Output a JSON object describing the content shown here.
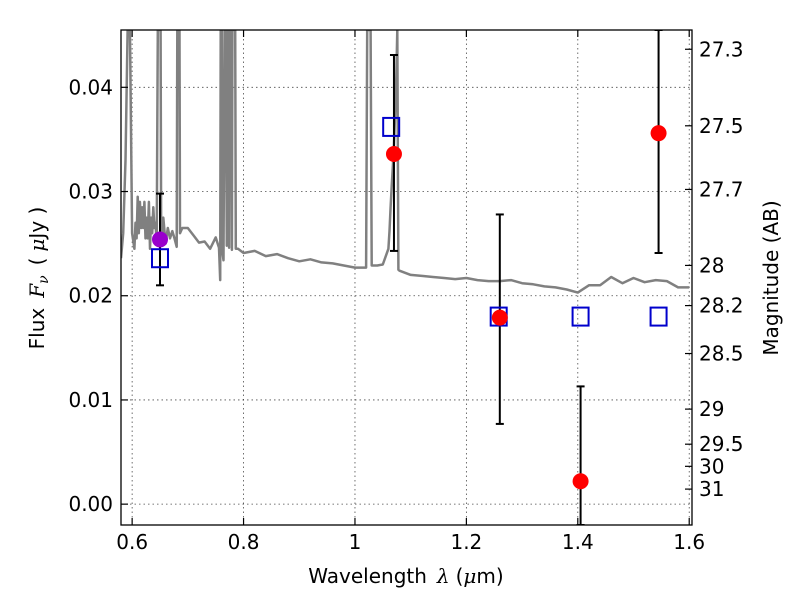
{
  "chart_data": {
    "type": "scatter",
    "xlabel_text": "Wavelength",
    "xlabel_symbol": "λ",
    "xlabel_unit_open": "(",
    "xlabel_unit_mu": "μ",
    "xlabel_unit_close": "m)",
    "ylabel_text": "Flux",
    "ylabel_symbol": "F",
    "ylabel_subscript": "ν",
    "ylabel_unit_open": "(",
    "ylabel_unit_mu": "μ",
    "ylabel_unit_close": "Jy )",
    "y2label": "Magnitude (AB)",
    "xlim": [
      0.58,
      1.605
    ],
    "ylim": [
      -0.002,
      0.0455
    ],
    "grid": true,
    "x_ticks": [
      {
        "value": 0.6,
        "label": "0.6"
      },
      {
        "value": 0.8,
        "label": "0.8"
      },
      {
        "value": 1.0,
        "label": "1"
      },
      {
        "value": 1.2,
        "label": "1.2"
      },
      {
        "value": 1.4,
        "label": "1.4"
      },
      {
        "value": 1.6,
        "label": "1.6"
      }
    ],
    "y_ticks": [
      {
        "value": 0.0,
        "label": "0.00"
      },
      {
        "value": 0.01,
        "label": "0.01"
      },
      {
        "value": 0.02,
        "label": "0.02"
      },
      {
        "value": 0.03,
        "label": "0.03"
      },
      {
        "value": 0.04,
        "label": "0.04"
      }
    ],
    "mag_ticks": [
      {
        "value": 27.3,
        "label": "27.3"
      },
      {
        "value": 27.5,
        "label": "27.5"
      },
      {
        "value": 27.7,
        "label": "27.7"
      },
      {
        "value": 28.0,
        "label": "28"
      },
      {
        "value": 28.2,
        "label": "28.2"
      },
      {
        "value": 28.5,
        "label": "28.5"
      },
      {
        "value": 29.0,
        "label": "29"
      },
      {
        "value": 29.5,
        "label": "29.5"
      },
      {
        "value": 30.0,
        "label": "30"
      },
      {
        "value": 31.0,
        "label": "31"
      }
    ],
    "observed": {
      "color": "#ff0000",
      "points": [
        {
          "x": 1.07,
          "y": 0.0336,
          "yerr_low": 0.0243,
          "yerr_high": 0.0431
        },
        {
          "x": 1.26,
          "y": 0.0179,
          "yerr_low": 0.0077,
          "yerr_high": 0.0278
        },
        {
          "x": 1.405,
          "y": 0.0022,
          "yerr_low": -0.002,
          "yerr_high": 0.0113
        },
        {
          "x": 1.545,
          "y": 0.0356,
          "yerr_low": 0.0241,
          "yerr_high": 0.0455
        }
      ]
    },
    "optical_point": {
      "color": "#9900cc",
      "x": 0.65,
      "y": 0.0254,
      "yerr_low": 0.021,
      "yerr_high": 0.0298
    },
    "model_photometry": {
      "color": "#0000cc",
      "points": [
        {
          "x": 0.65,
          "y": 0.0236
        },
        {
          "x": 1.065,
          "y": 0.0362
        },
        {
          "x": 1.258,
          "y": 0.018
        },
        {
          "x": 1.405,
          "y": 0.018
        },
        {
          "x": 1.545,
          "y": 0.018
        }
      ]
    },
    "sed_model": {
      "color": "#808080",
      "x": [
        0.58,
        0.584,
        0.588,
        0.592,
        0.596,
        0.6,
        0.604,
        0.606,
        0.608,
        0.61,
        0.612,
        0.614,
        0.616,
        0.618,
        0.62,
        0.622,
        0.624,
        0.626,
        0.628,
        0.63,
        0.632,
        0.634,
        0.636,
        0.638,
        0.64,
        0.642,
        0.644,
        0.646,
        0.648,
        0.649,
        0.65,
        0.651,
        0.652,
        0.654,
        0.656,
        0.66,
        0.664,
        0.668,
        0.672,
        0.676,
        0.68,
        0.681,
        0.682,
        0.683,
        0.684,
        0.685,
        0.686,
        0.69,
        0.7,
        0.71,
        0.72,
        0.73,
        0.74,
        0.75,
        0.756,
        0.758,
        0.759,
        0.76,
        0.761,
        0.762,
        0.764,
        0.766,
        0.768,
        0.77,
        0.772,
        0.773,
        0.774,
        0.775,
        0.776,
        0.777,
        0.778,
        0.779,
        0.78,
        0.781,
        0.782,
        0.783,
        0.784,
        0.785,
        0.786,
        0.79,
        0.8,
        0.82,
        0.84,
        0.86,
        0.88,
        0.9,
        0.92,
        0.94,
        0.96,
        0.98,
        1.0,
        1.02,
        1.022,
        1.024,
        1.026,
        1.028,
        1.03,
        1.04,
        1.05,
        1.06,
        1.062,
        1.064,
        1.066,
        1.068,
        1.07,
        1.072,
        1.074,
        1.076,
        1.078,
        1.08,
        1.09,
        1.1,
        1.12,
        1.14,
        1.16,
        1.18,
        1.2,
        1.22,
        1.24,
        1.26,
        1.28,
        1.3,
        1.32,
        1.34,
        1.36,
        1.38,
        1.4,
        1.42,
        1.44,
        1.46,
        1.48,
        1.5,
        1.52,
        1.54,
        1.56,
        1.58,
        1.6
      ],
      "y": [
        0.0236,
        0.026,
        0.033,
        0.046,
        0.046,
        0.026,
        0.0245,
        0.027,
        0.0255,
        0.0295,
        0.026,
        0.029,
        0.0265,
        0.0285,
        0.0265,
        0.029,
        0.0255,
        0.0275,
        0.0255,
        0.029,
        0.0245,
        0.0275,
        0.026,
        0.0285,
        0.0265,
        0.027,
        0.025,
        0.0455,
        0.0455,
        0.0455,
        0.0455,
        0.0455,
        0.0275,
        0.0255,
        0.0275,
        0.025,
        0.0265,
        0.0255,
        0.0262,
        0.0255,
        0.0247,
        0.0455,
        0.0455,
        0.0455,
        0.0455,
        0.0455,
        0.026,
        0.0265,
        0.0265,
        0.0258,
        0.0251,
        0.0252,
        0.0245,
        0.0256,
        0.0246,
        0.0215,
        0.0455,
        0.0455,
        0.0455,
        0.0242,
        0.0234,
        0.0455,
        0.0455,
        0.0248,
        0.0455,
        0.0455,
        0.0246,
        0.0455,
        0.0455,
        0.0455,
        0.0455,
        0.0244,
        0.0455,
        0.0455,
        0.0455,
        0.0455,
        0.0455,
        0.0455,
        0.0245,
        0.0245,
        0.0241,
        0.0243,
        0.0238,
        0.024,
        0.0236,
        0.0233,
        0.0235,
        0.0232,
        0.0231,
        0.0229,
        0.0227,
        0.0227,
        0.0455,
        0.0455,
        0.0455,
        0.0455,
        0.0229,
        0.0229,
        0.023,
        0.0245,
        0.0262,
        0.0285,
        0.0305,
        0.0325,
        0.0345,
        0.0375,
        0.0405,
        0.0455,
        0.0225,
        0.0224,
        0.0222,
        0.022,
        0.0219,
        0.0218,
        0.0217,
        0.0216,
        0.0217,
        0.0215,
        0.0214,
        0.0214,
        0.0215,
        0.0212,
        0.0211,
        0.0209,
        0.0208,
        0.0206,
        0.0203,
        0.021,
        0.021,
        0.0218,
        0.0212,
        0.0217,
        0.0213,
        0.0215,
        0.0214,
        0.0208,
        0.0208
      ]
    }
  }
}
